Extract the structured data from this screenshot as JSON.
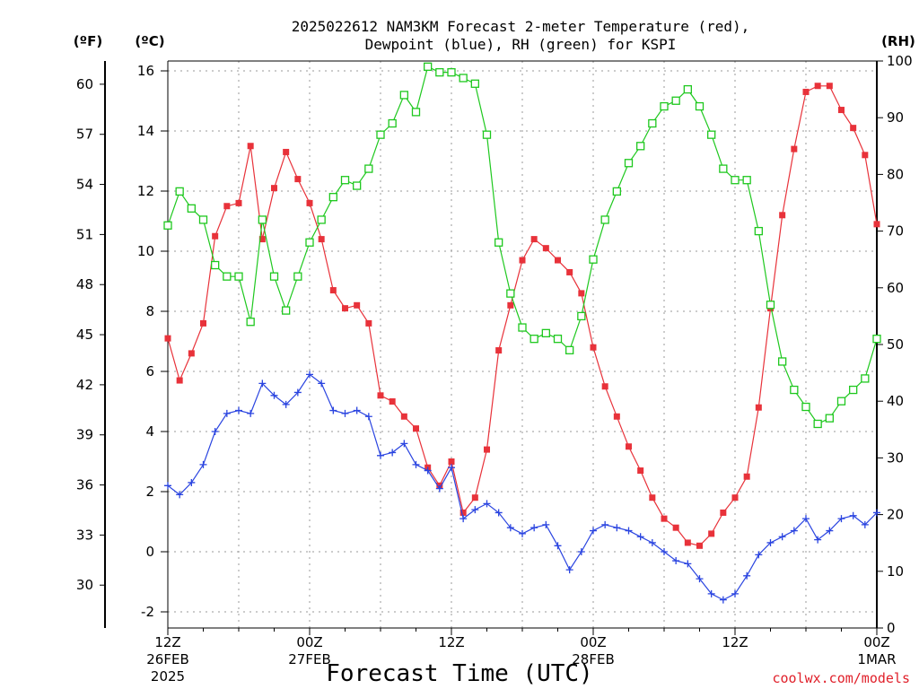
{
  "chart_data": {
    "type": "line",
    "title_line1": "2025022612 NAM3KM Forecast 2-meter Temperature (red),",
    "title_line2": "Dewpoint (blue), RH (green) for KSPI",
    "xlabel": "Forecast Time (UTC)",
    "credit": "coolwx.com/models",
    "unit_f": "(ºF)",
    "unit_c": "(ºC)",
    "unit_rh": "(RH)",
    "x_hours": [
      0,
      1,
      2,
      3,
      4,
      5,
      6,
      7,
      8,
      9,
      10,
      11,
      12,
      13,
      14,
      15,
      16,
      17,
      18,
      19,
      20,
      21,
      22,
      23,
      24,
      25,
      26,
      27,
      28,
      29,
      30,
      31,
      32,
      33,
      34,
      35,
      36,
      37,
      38,
      39,
      40,
      41,
      42,
      43,
      44,
      45,
      46,
      47,
      48,
      49,
      50,
      51,
      52,
      53,
      54,
      55,
      56,
      57,
      58,
      59,
      60
    ],
    "xlim": [
      0,
      60
    ],
    "x_ticks": [
      {
        "hour": 0,
        "line1": "12Z",
        "line2": "26FEB",
        "line3": "2025"
      },
      {
        "hour": 12,
        "line1": "00Z",
        "line2": "27FEB",
        "line3": ""
      },
      {
        "hour": 24,
        "line1": "12Z",
        "line2": "",
        "line3": ""
      },
      {
        "hour": 36,
        "line1": "00Z",
        "line2": "28FEB",
        "line3": ""
      },
      {
        "hour": 48,
        "line1": "12Z",
        "line2": "",
        "line3": ""
      },
      {
        "hour": 60,
        "line1": "00Z",
        "line2": "1MAR",
        "line3": ""
      }
    ],
    "ylim_c": [
      -2.5,
      16.5
    ],
    "yticks_c": [
      -2,
      0,
      2,
      4,
      6,
      8,
      10,
      12,
      14,
      16
    ],
    "yticks_f": [
      30,
      33,
      36,
      39,
      42,
      45,
      48,
      51,
      54,
      57,
      60
    ],
    "ylim_rh": [
      0,
      100
    ],
    "yticks_rh": [
      0,
      10,
      20,
      30,
      40,
      50,
      60,
      70,
      80,
      90,
      100
    ],
    "grid": true,
    "series": [
      {
        "name": "Temperature",
        "axis": "celsius",
        "color": "#e8323a",
        "marker": "filled-square",
        "values": [
          7.1,
          5.7,
          6.6,
          7.6,
          10.5,
          11.5,
          11.6,
          13.5,
          10.4,
          12.1,
          13.3,
          12.4,
          11.6,
          10.4,
          8.7,
          8.1,
          8.2,
          7.6,
          5.2,
          5.0,
          4.5,
          4.1,
          2.8,
          2.2,
          3.0,
          1.3,
          1.8,
          3.4,
          6.7,
          8.2,
          9.7,
          10.4,
          10.1,
          9.7,
          9.3,
          8.6,
          6.8,
          5.5,
          4.5,
          3.5,
          2.7,
          1.8,
          1.1,
          0.8,
          0.3,
          0.2,
          0.6,
          1.3,
          1.8,
          2.5,
          4.8,
          8.1,
          11.2,
          13.4,
          15.3,
          15.5,
          15.5,
          14.7,
          14.1,
          13.2,
          10.9
        ]
      },
      {
        "name": "Dewpoint",
        "axis": "celsius",
        "color": "#2a44e0",
        "marker": "plus",
        "values": [
          2.2,
          1.9,
          2.3,
          2.9,
          4.0,
          4.6,
          4.7,
          4.6,
          5.6,
          5.2,
          4.9,
          5.3,
          5.9,
          5.6,
          4.7,
          4.6,
          4.7,
          4.5,
          3.2,
          3.3,
          3.6,
          2.9,
          2.7,
          2.1,
          2.8,
          1.1,
          1.4,
          1.6,
          1.3,
          0.8,
          0.6,
          0.8,
          0.9,
          0.2,
          -0.6,
          -0.0,
          0.7,
          0.9,
          0.8,
          0.7,
          0.5,
          0.3,
          0.0,
          -0.3,
          -0.4,
          -0.9,
          -1.4,
          -1.6,
          -1.4,
          -0.8,
          -0.1,
          0.3,
          0.5,
          0.7,
          1.1,
          0.4,
          0.7,
          1.1,
          1.2,
          0.9,
          1.3
        ]
      },
      {
        "name": "RH",
        "axis": "rh",
        "color": "#1ec81e",
        "marker": "open-square",
        "values": [
          71,
          77,
          74,
          72,
          64,
          62,
          62,
          54,
          72,
          62,
          56,
          62,
          68,
          72,
          76,
          79,
          78,
          81,
          87,
          89,
          94,
          91,
          99,
          98,
          98,
          97,
          96,
          87,
          68,
          59,
          53,
          51,
          52,
          51,
          49,
          55,
          65,
          72,
          77,
          82,
          85,
          89,
          92,
          93,
          95,
          92,
          87,
          81,
          79,
          79,
          70,
          57,
          47,
          42,
          39,
          36,
          37,
          40,
          42,
          44,
          51
        ]
      }
    ]
  }
}
